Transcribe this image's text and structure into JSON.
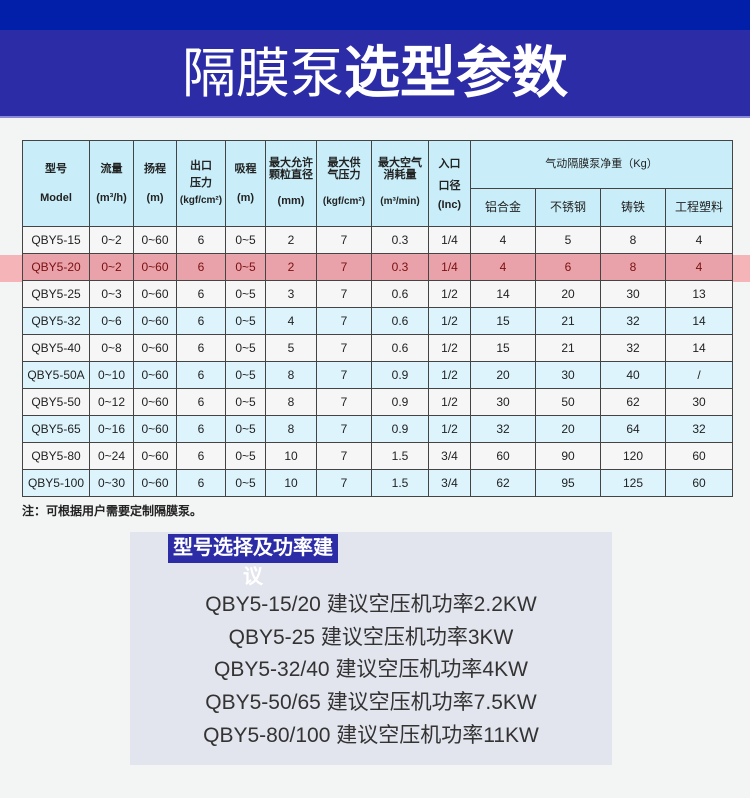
{
  "title": {
    "light": "隔膜泵",
    "bold": "选型参数"
  },
  "table": {
    "headers": {
      "model": [
        "型号",
        "Model"
      ],
      "flow": [
        "流量",
        "(m³/h)"
      ],
      "head": [
        "扬程",
        "(m)"
      ],
      "outlet_pressure": [
        "出口压力",
        "(kgf/cm²)"
      ],
      "suction": [
        "吸程",
        "(m)"
      ],
      "particle": [
        "最大允许颗粒直径",
        "(mm)"
      ],
      "air_pressure": [
        "最大供气压力",
        "(kgf/cm²)"
      ],
      "air_consumption": [
        "最大空气消耗量",
        "(m³/min)"
      ],
      "inlet": [
        "入口口径",
        "(Inc)"
      ],
      "weight_group": "气动隔膜泵净重（Kg）",
      "materials": [
        "铝合金",
        "不锈钢",
        "铸铁",
        "工程塑料"
      ]
    },
    "rows": [
      [
        "QBY5-15",
        "0~2",
        "0~60",
        "6",
        "0~5",
        "2",
        "7",
        "0.3",
        "1/4",
        "4",
        "5",
        "8",
        "4"
      ],
      [
        "QBY5-20",
        "0~2",
        "0~60",
        "6",
        "0~5",
        "2",
        "7",
        "0.3",
        "1/4",
        "4",
        "6",
        "8",
        "4"
      ],
      [
        "QBY5-25",
        "0~3",
        "0~60",
        "6",
        "0~5",
        "3",
        "7",
        "0.6",
        "1/2",
        "14",
        "20",
        "30",
        "13"
      ],
      [
        "QBY5-32",
        "0~6",
        "0~60",
        "6",
        "0~5",
        "4",
        "7",
        "0.6",
        "1/2",
        "15",
        "21",
        "32",
        "14"
      ],
      [
        "QBY5-40",
        "0~8",
        "0~60",
        "6",
        "0~5",
        "5",
        "7",
        "0.6",
        "1/2",
        "15",
        "21",
        "32",
        "14"
      ],
      [
        "QBY5-50A",
        "0~10",
        "0~60",
        "6",
        "0~5",
        "8",
        "7",
        "0.9",
        "1/2",
        "20",
        "30",
        "40",
        "/"
      ],
      [
        "QBY5-50",
        "0~12",
        "0~60",
        "6",
        "0~5",
        "8",
        "7",
        "0.9",
        "1/2",
        "30",
        "50",
        "62",
        "30"
      ],
      [
        "QBY5-65",
        "0~16",
        "0~60",
        "6",
        "0~5",
        "8",
        "7",
        "0.9",
        "1/2",
        "32",
        "20",
        "64",
        "32"
      ],
      [
        "QBY5-80",
        "0~24",
        "0~60",
        "6",
        "0~5",
        "10",
        "7",
        "1.5",
        "3/4",
        "60",
        "90",
        "120",
        "60"
      ],
      [
        "QBY5-100",
        "0~30",
        "0~60",
        "6",
        "0~5",
        "10",
        "7",
        "1.5",
        "3/4",
        "62",
        "95",
        "125",
        "60"
      ]
    ],
    "highlighted_row": "QBY5-20"
  },
  "note": "注：可根据用户需要定制隔膜泵。",
  "recommend": {
    "title": "型号选择及功率建议",
    "lines": [
      "QBY5-15/20  建议空压机功率2.2KW",
      "QBY5-25  建议空压机功率3KW",
      "QBY5-32/40  建议空压机功率4KW",
      "QBY5-50/65  建议空压机功率7.5KW",
      "QBY5-80/100 建议空压机功率11KW"
    ]
  },
  "colors": {
    "banner": "#2d2ca7",
    "top": "#021fa9",
    "header_bg": "#c9eef9",
    "alt_row": "#ddf4fc",
    "highlight": "#f4a9ad"
  }
}
